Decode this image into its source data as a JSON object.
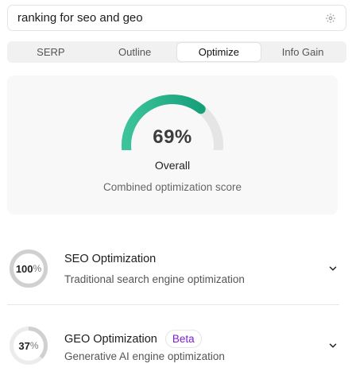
{
  "search": {
    "value": "ranking for seo and geo",
    "icon": "gear-icon"
  },
  "tabs": [
    {
      "label": "SERP",
      "active": false
    },
    {
      "label": "Outline",
      "active": false
    },
    {
      "label": "Optimize",
      "active": true
    },
    {
      "label": "Info Gain",
      "active": false
    }
  ],
  "overall": {
    "score": 69,
    "score_text": "69%",
    "label": "Overall",
    "description": "Combined optimization score",
    "gauge_gradient_start": "#3cc39a",
    "gauge_gradient_end": "#16a07a",
    "track_color": "#e5e5e5"
  },
  "sections": [
    {
      "score": 100,
      "score_number": "100",
      "score_unit": "%",
      "title": "SEO Optimization",
      "description": "Traditional search engine optimization",
      "badge": ""
    },
    {
      "score": 37,
      "score_number": "37",
      "score_unit": "%",
      "title": "GEO Optimization",
      "description": "Generative AI engine optimization",
      "badge": "Beta"
    }
  ],
  "colors": {
    "ring_fill": "#d0d0d0",
    "ring_track": "#ececec",
    "badge_text": "#7e22ce"
  }
}
